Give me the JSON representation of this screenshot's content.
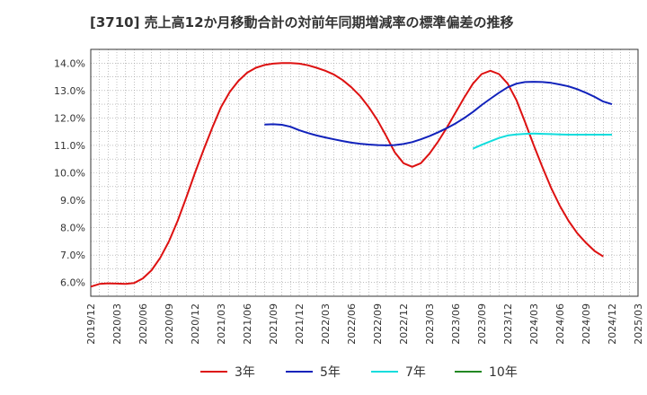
{
  "chart_data": {
    "type": "line",
    "title": "[3710]  売上高12か月移動合計の対前年同期増減率の標準偏差の推移",
    "xlabel": "",
    "ylabel": "",
    "x_range": [
      "2019-12",
      "2025-03"
    ],
    "ylim": [
      5.5,
      14.5
    ],
    "x_ticks": [
      "2019/12",
      "2020/03",
      "2020/06",
      "2020/09",
      "2020/12",
      "2021/03",
      "2021/06",
      "2021/09",
      "2021/12",
      "2022/03",
      "2022/06",
      "2022/09",
      "2022/12",
      "2023/03",
      "2023/06",
      "2023/09",
      "2023/12",
      "2024/03",
      "2024/06",
      "2024/09",
      "2024/12",
      "2025/03"
    ],
    "y_ticks": [
      {
        "value": 6.0,
        "label": "6.0%"
      },
      {
        "value": 7.0,
        "label": "7.0%"
      },
      {
        "value": 8.0,
        "label": "8.0%"
      },
      {
        "value": 9.0,
        "label": "9.0%"
      },
      {
        "value": 10.0,
        "label": "10.0%"
      },
      {
        "value": 11.0,
        "label": "11.0%"
      },
      {
        "value": 12.0,
        "label": "12.0%"
      },
      {
        "value": 13.0,
        "label": "13.0%"
      },
      {
        "value": 14.0,
        "label": "14.0%"
      }
    ],
    "grid": true,
    "legend_position": "bottom",
    "series": [
      {
        "name": "3年",
        "color": "#dd1111",
        "points": [
          [
            "2019-12",
            5.85
          ],
          [
            "2020-01",
            5.95
          ],
          [
            "2020-02",
            5.97
          ],
          [
            "2020-03",
            5.96
          ],
          [
            "2020-04",
            5.95
          ],
          [
            "2020-05",
            5.98
          ],
          [
            "2020-06",
            6.15
          ],
          [
            "2020-07",
            6.45
          ],
          [
            "2020-08",
            6.9
          ],
          [
            "2020-09",
            7.5
          ],
          [
            "2020-10",
            8.25
          ],
          [
            "2020-11",
            9.1
          ],
          [
            "2020-12",
            10.0
          ],
          [
            "2021-01",
            10.85
          ],
          [
            "2021-02",
            11.65
          ],
          [
            "2021-03",
            12.4
          ],
          [
            "2021-04",
            12.95
          ],
          [
            "2021-05",
            13.35
          ],
          [
            "2021-06",
            13.65
          ],
          [
            "2021-07",
            13.83
          ],
          [
            "2021-08",
            13.93
          ],
          [
            "2021-09",
            13.98
          ],
          [
            "2021-10",
            14.0
          ],
          [
            "2021-11",
            14.0
          ],
          [
            "2021-12",
            13.98
          ],
          [
            "2022-01",
            13.92
          ],
          [
            "2022-02",
            13.83
          ],
          [
            "2022-03",
            13.72
          ],
          [
            "2022-04",
            13.58
          ],
          [
            "2022-05",
            13.38
          ],
          [
            "2022-06",
            13.12
          ],
          [
            "2022-07",
            12.8
          ],
          [
            "2022-08",
            12.4
          ],
          [
            "2022-09",
            11.92
          ],
          [
            "2022-10",
            11.35
          ],
          [
            "2022-11",
            10.75
          ],
          [
            "2022-12",
            10.35
          ],
          [
            "2023-01",
            10.22
          ],
          [
            "2023-02",
            10.35
          ],
          [
            "2023-03",
            10.7
          ],
          [
            "2023-04",
            11.15
          ],
          [
            "2023-05",
            11.65
          ],
          [
            "2023-06",
            12.2
          ],
          [
            "2023-07",
            12.75
          ],
          [
            "2023-08",
            13.25
          ],
          [
            "2023-09",
            13.6
          ],
          [
            "2023-10",
            13.72
          ],
          [
            "2023-11",
            13.6
          ],
          [
            "2023-12",
            13.25
          ],
          [
            "2024-01",
            12.65
          ],
          [
            "2024-02",
            11.85
          ],
          [
            "2024-03",
            11.0
          ],
          [
            "2024-04",
            10.2
          ],
          [
            "2024-05",
            9.45
          ],
          [
            "2024-06",
            8.8
          ],
          [
            "2024-07",
            8.25
          ],
          [
            "2024-08",
            7.8
          ],
          [
            "2024-09",
            7.45
          ],
          [
            "2024-10",
            7.15
          ],
          [
            "2024-11",
            6.95
          ]
        ]
      },
      {
        "name": "5年",
        "color": "#1122bb",
        "points": [
          [
            "2021-08",
            11.76
          ],
          [
            "2021-09",
            11.77
          ],
          [
            "2021-10",
            11.75
          ],
          [
            "2021-11",
            11.68
          ],
          [
            "2021-12",
            11.55
          ],
          [
            "2022-01",
            11.45
          ],
          [
            "2022-02",
            11.36
          ],
          [
            "2022-03",
            11.29
          ],
          [
            "2022-04",
            11.22
          ],
          [
            "2022-05",
            11.16
          ],
          [
            "2022-06",
            11.1
          ],
          [
            "2022-07",
            11.06
          ],
          [
            "2022-08",
            11.03
          ],
          [
            "2022-09",
            11.01
          ],
          [
            "2022-10",
            11.0
          ],
          [
            "2022-11",
            11.01
          ],
          [
            "2022-12",
            11.05
          ],
          [
            "2023-01",
            11.12
          ],
          [
            "2023-02",
            11.22
          ],
          [
            "2023-03",
            11.34
          ],
          [
            "2023-04",
            11.48
          ],
          [
            "2023-05",
            11.63
          ],
          [
            "2023-06",
            11.8
          ],
          [
            "2023-07",
            12.0
          ],
          [
            "2023-08",
            12.22
          ],
          [
            "2023-09",
            12.47
          ],
          [
            "2023-10",
            12.7
          ],
          [
            "2023-11",
            12.92
          ],
          [
            "2023-12",
            13.12
          ],
          [
            "2024-01",
            13.25
          ],
          [
            "2024-02",
            13.31
          ],
          [
            "2024-03",
            13.32
          ],
          [
            "2024-04",
            13.31
          ],
          [
            "2024-05",
            13.28
          ],
          [
            "2024-06",
            13.22
          ],
          [
            "2024-07",
            13.15
          ],
          [
            "2024-08",
            13.05
          ],
          [
            "2024-09",
            12.92
          ],
          [
            "2024-10",
            12.77
          ],
          [
            "2024-11",
            12.6
          ],
          [
            "2024-12",
            12.5
          ]
        ]
      },
      {
        "name": "7年",
        "color": "#11dddd",
        "points": [
          [
            "2023-08",
            10.88
          ],
          [
            "2023-09",
            11.02
          ],
          [
            "2023-10",
            11.15
          ],
          [
            "2023-11",
            11.27
          ],
          [
            "2023-12",
            11.36
          ],
          [
            "2024-01",
            11.4
          ],
          [
            "2024-02",
            11.42
          ],
          [
            "2024-03",
            11.43
          ],
          [
            "2024-04",
            11.42
          ],
          [
            "2024-05",
            11.41
          ],
          [
            "2024-06",
            11.4
          ],
          [
            "2024-07",
            11.39
          ],
          [
            "2024-08",
            11.39
          ],
          [
            "2024-09",
            11.39
          ],
          [
            "2024-10",
            11.39
          ],
          [
            "2024-11",
            11.39
          ],
          [
            "2024-12",
            11.39
          ]
        ]
      },
      {
        "name": "10年",
        "color": "#228822",
        "points": []
      }
    ]
  }
}
